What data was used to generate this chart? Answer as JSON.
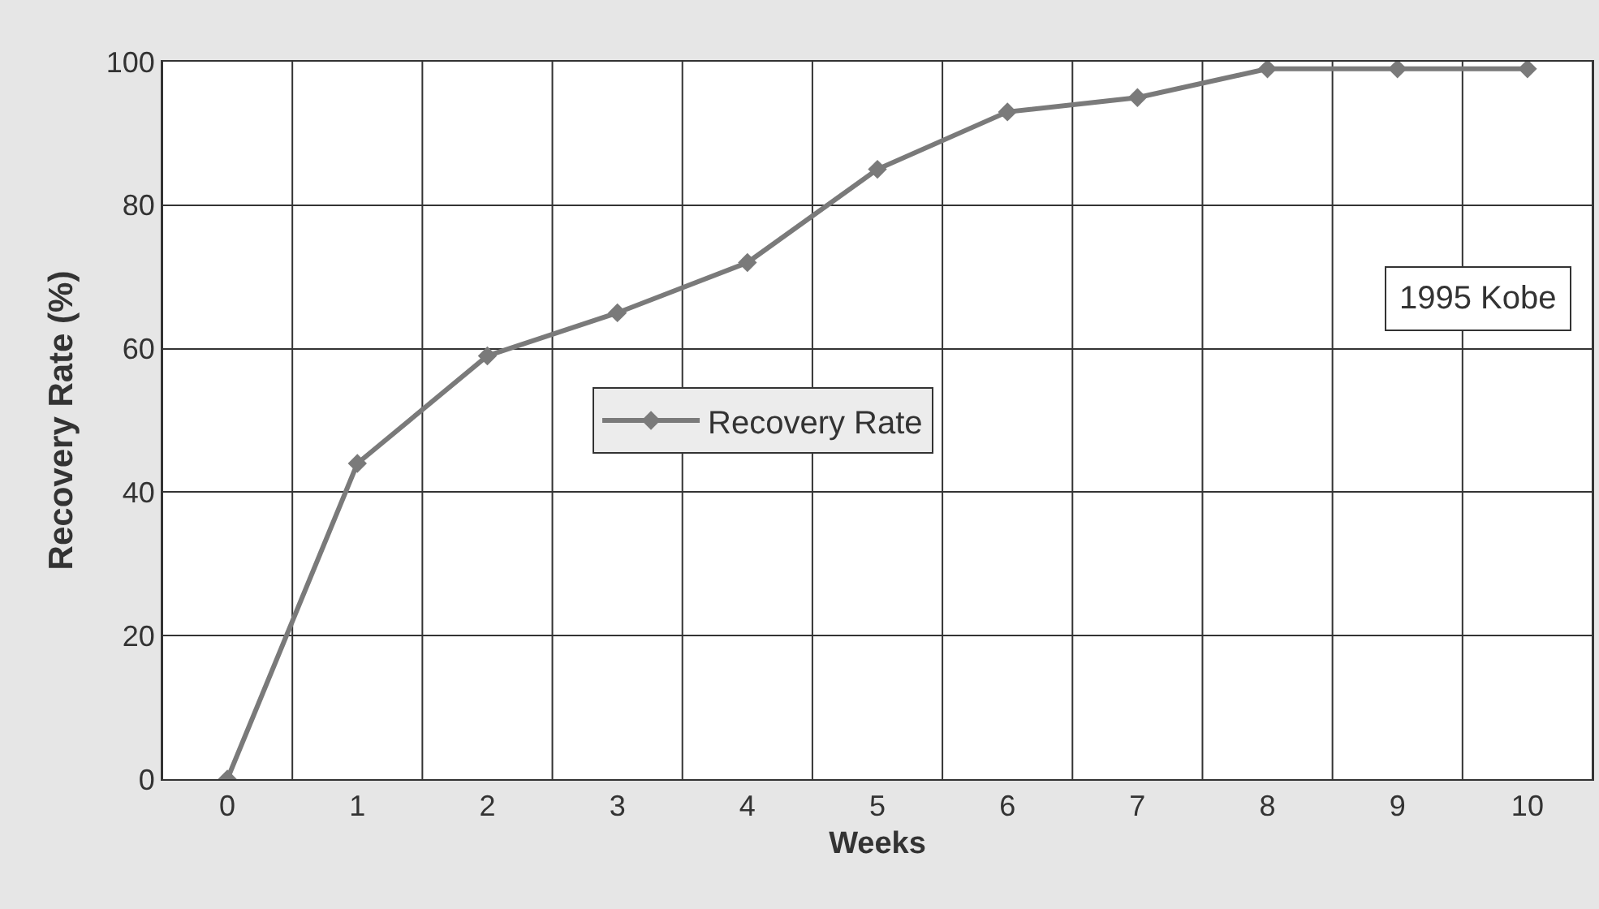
{
  "chart_data": {
    "type": "line",
    "xlabel": "Weeks",
    "ylabel": "Recovery Rate (%)",
    "categories": [
      "0",
      "1",
      "2",
      "3",
      "4",
      "5",
      "6",
      "7",
      "8",
      "9",
      "10"
    ],
    "series": [
      {
        "name": "Recovery Rate",
        "color": "#7a7a7a",
        "values": [
          0,
          44,
          59,
          65,
          72,
          85,
          93,
          95,
          99,
          99,
          99
        ]
      }
    ],
    "ylim": [
      0,
      100
    ],
    "yticks": [
      0,
      20,
      40,
      60,
      80,
      100
    ],
    "annotations": [
      "1995 Kobe"
    ],
    "grid": true,
    "legend": "center",
    "marker": "diamond",
    "line_style": "solid"
  }
}
